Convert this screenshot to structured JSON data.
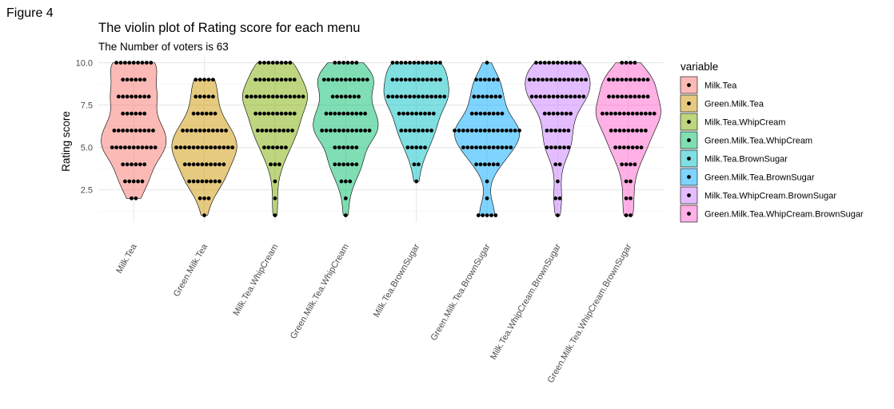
{
  "figure_label": "Figure 4",
  "chart_data": {
    "type": "violin",
    "title": "The violin plot of Rating score for each menu",
    "subtitle": "The Number of voters is 63",
    "xlabel": "",
    "ylabel": "Rating score",
    "ylim": [
      0.6,
      10.4
    ],
    "yticks": [
      2.5,
      5.0,
      7.5,
      10.0
    ],
    "ytick_labels": [
      "2.5",
      "5.0",
      "7.5",
      "10.0"
    ],
    "grid": true,
    "legend": {
      "title": "variable",
      "placement": "right"
    },
    "categories": [
      "Milk.Tea",
      "Green.Milk.Tea",
      "Milk.Tea.WhipCream",
      "Green.Milk.Tea.WhipCream",
      "Milk.Tea.BrownSugar",
      "Green.Milk.Tea.BrownSugar",
      "Milk.Tea.WhipCream.BrownSugar",
      "Green.Milk.Tea.WhipCream.BrownSugar"
    ],
    "colors": [
      "#F8766D",
      "#CD9600",
      "#7CAE00",
      "#00BE67",
      "#00BFC4",
      "#00A9FF",
      "#C77CFF",
      "#FF61CC"
    ],
    "series": [
      {
        "name": "Milk.Tea",
        "counts": {
          "1": 0,
          "2": 2,
          "3": 5,
          "4": 6,
          "5": 11,
          "6": 10,
          "7": 6,
          "8": 8,
          "9": 6,
          "10": 9
        }
      },
      {
        "name": "Green.Milk.Tea",
        "counts": {
          "1": 1,
          "2": 3,
          "3": 8,
          "4": 10,
          "5": 14,
          "6": 11,
          "7": 6,
          "8": 5,
          "9": 5,
          "10": 0
        }
      },
      {
        "name": "Milk.Tea.WhipCream",
        "counts": {
          "1": 1,
          "2": 1,
          "3": 1,
          "4": 3,
          "5": 6,
          "6": 9,
          "7": 10,
          "8": 14,
          "9": 10,
          "10": 8
        }
      },
      {
        "name": "Green.Milk.Tea.WhipCream",
        "counts": {
          "1": 1,
          "2": 1,
          "3": 3,
          "4": 6,
          "5": 6,
          "6": 12,
          "7": 10,
          "8": 7,
          "9": 11,
          "10": 6
        }
      },
      {
        "name": "Milk.Tea.BrownSugar",
        "counts": {
          "1": 0,
          "2": 0,
          "3": 1,
          "4": 2,
          "5": 5,
          "6": 8,
          "7": 9,
          "8": 14,
          "9": 12,
          "10": 12
        }
      },
      {
        "name": "Green.Milk.Tea.BrownSugar",
        "counts": {
          "1": 5,
          "2": 1,
          "3": 1,
          "4": 6,
          "5": 12,
          "6": 16,
          "7": 8,
          "8": 7,
          "9": 6,
          "10": 1
        }
      },
      {
        "name": "Milk.Tea.WhipCream.BrownSugar",
        "counts": {
          "1": 1,
          "2": 2,
          "3": 1,
          "4": 2,
          "5": 6,
          "6": 6,
          "7": 7,
          "8": 13,
          "9": 14,
          "10": 11
        }
      },
      {
        "name": "Green.Milk.Tea.WhipCream.BrownSugar",
        "counts": {
          "1": 2,
          "2": 2,
          "3": 2,
          "4": 4,
          "5": 7,
          "6": 9,
          "7": 13,
          "8": 10,
          "9": 10,
          "10": 4
        }
      }
    ]
  }
}
